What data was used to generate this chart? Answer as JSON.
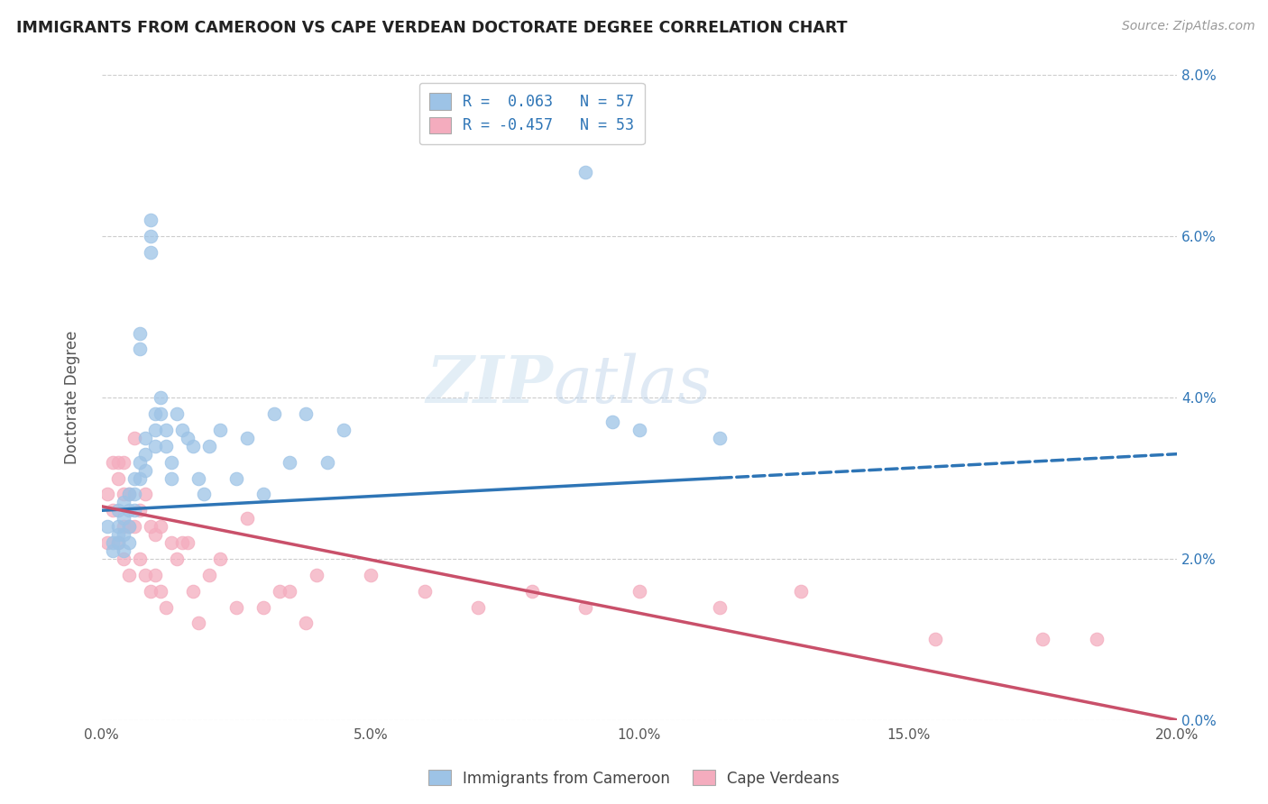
{
  "title": "IMMIGRANTS FROM CAMEROON VS CAPE VERDEAN DOCTORATE DEGREE CORRELATION CHART",
  "source": "Source: ZipAtlas.com",
  "ylabel": "Doctorate Degree",
  "xlim": [
    0.0,
    0.2
  ],
  "ylim": [
    0.0,
    0.08
  ],
  "xticks": [
    0.0,
    0.05,
    0.1,
    0.15,
    0.2
  ],
  "yticks": [
    0.0,
    0.02,
    0.04,
    0.06,
    0.08
  ],
  "xticklabels": [
    "0.0%",
    "5.0%",
    "10.0%",
    "15.0%",
    "20.0%"
  ],
  "yticklabels_right": [
    "0.0%",
    "2.0%",
    "4.0%",
    "6.0%",
    "8.0%"
  ],
  "legend_label1": "Immigrants from Cameroon",
  "legend_label2": "Cape Verdeans",
  "R1": "0.063",
  "N1": "57",
  "R2": "-0.457",
  "N2": "53",
  "color_blue": "#9DC3E6",
  "color_pink": "#F4ACBE",
  "color_blue_dark": "#2E75B6",
  "color_pink_dark": "#C9506A",
  "watermark_zip": "ZIP",
  "watermark_atlas": "atlas",
  "blue_scatter_x": [
    0.001,
    0.002,
    0.002,
    0.003,
    0.003,
    0.003,
    0.003,
    0.004,
    0.004,
    0.004,
    0.004,
    0.005,
    0.005,
    0.005,
    0.005,
    0.006,
    0.006,
    0.006,
    0.007,
    0.007,
    0.007,
    0.007,
    0.008,
    0.008,
    0.008,
    0.009,
    0.009,
    0.009,
    0.01,
    0.01,
    0.01,
    0.011,
    0.011,
    0.012,
    0.012,
    0.013,
    0.013,
    0.014,
    0.015,
    0.016,
    0.017,
    0.018,
    0.019,
    0.02,
    0.022,
    0.025,
    0.027,
    0.03,
    0.032,
    0.035,
    0.038,
    0.042,
    0.045,
    0.09,
    0.095,
    0.1,
    0.115
  ],
  "blue_scatter_y": [
    0.024,
    0.022,
    0.021,
    0.026,
    0.024,
    0.023,
    0.022,
    0.027,
    0.025,
    0.023,
    0.021,
    0.028,
    0.026,
    0.024,
    0.022,
    0.03,
    0.028,
    0.026,
    0.032,
    0.03,
    0.048,
    0.046,
    0.035,
    0.033,
    0.031,
    0.062,
    0.06,
    0.058,
    0.038,
    0.036,
    0.034,
    0.04,
    0.038,
    0.036,
    0.034,
    0.032,
    0.03,
    0.038,
    0.036,
    0.035,
    0.034,
    0.03,
    0.028,
    0.034,
    0.036,
    0.03,
    0.035,
    0.028,
    0.038,
    0.032,
    0.038,
    0.032,
    0.036,
    0.068,
    0.037,
    0.036,
    0.035
  ],
  "pink_scatter_x": [
    0.001,
    0.001,
    0.002,
    0.002,
    0.003,
    0.003,
    0.003,
    0.004,
    0.004,
    0.004,
    0.004,
    0.005,
    0.005,
    0.005,
    0.006,
    0.006,
    0.007,
    0.007,
    0.008,
    0.008,
    0.009,
    0.009,
    0.01,
    0.01,
    0.011,
    0.011,
    0.012,
    0.013,
    0.014,
    0.015,
    0.016,
    0.017,
    0.018,
    0.02,
    0.022,
    0.025,
    0.027,
    0.03,
    0.033,
    0.035,
    0.038,
    0.04,
    0.05,
    0.06,
    0.07,
    0.08,
    0.09,
    0.1,
    0.115,
    0.13,
    0.155,
    0.175,
    0.185
  ],
  "pink_scatter_y": [
    0.028,
    0.022,
    0.032,
    0.026,
    0.032,
    0.03,
    0.022,
    0.032,
    0.028,
    0.024,
    0.02,
    0.028,
    0.024,
    0.018,
    0.035,
    0.024,
    0.026,
    0.02,
    0.028,
    0.018,
    0.024,
    0.016,
    0.023,
    0.018,
    0.024,
    0.016,
    0.014,
    0.022,
    0.02,
    0.022,
    0.022,
    0.016,
    0.012,
    0.018,
    0.02,
    0.014,
    0.025,
    0.014,
    0.016,
    0.016,
    0.012,
    0.018,
    0.018,
    0.016,
    0.014,
    0.016,
    0.014,
    0.016,
    0.014,
    0.016,
    0.01,
    0.01,
    0.01
  ],
  "blue_trend_x0": 0.0,
  "blue_trend_x_split": 0.115,
  "blue_trend_x1": 0.2,
  "blue_trend_y0": 0.026,
  "blue_trend_y1": 0.033,
  "pink_trend_x0": 0.0,
  "pink_trend_x1": 0.2,
  "pink_trend_y0": 0.0265,
  "pink_trend_y1": 0.0
}
